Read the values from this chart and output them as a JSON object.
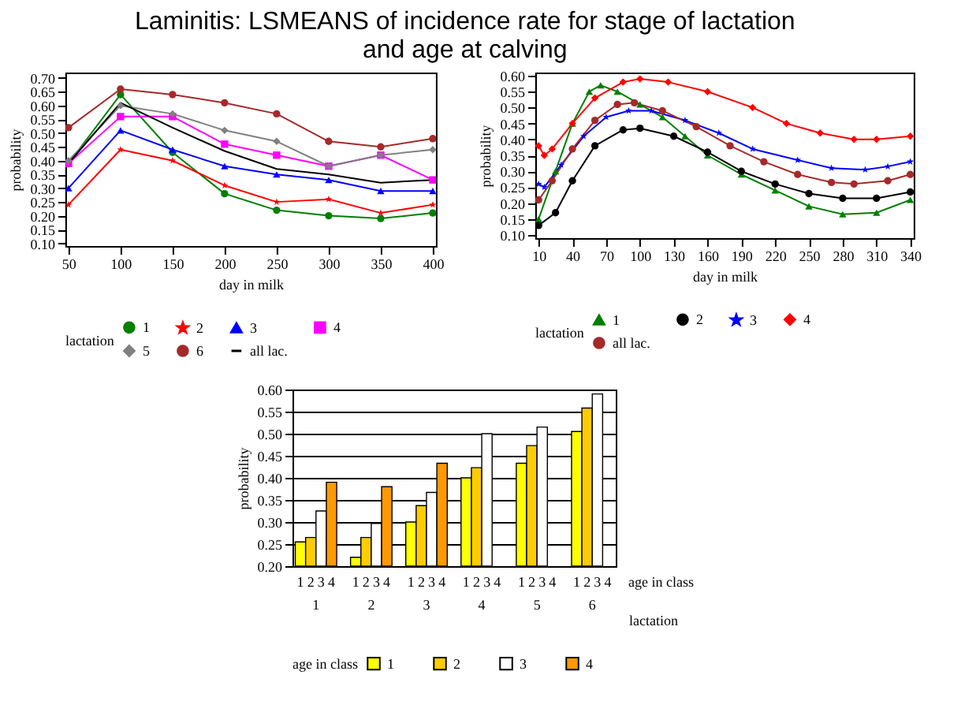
{
  "chart_data": [
    {
      "type": "line",
      "title": "Laminitis: LSMEANS of incidence rate for stage of lactation and age at calving",
      "xlabel": "day in milk",
      "ylabel": "probability",
      "legend_title": "lactation",
      "legend": "bottom",
      "grid": false,
      "x": [
        50,
        100,
        150,
        200,
        250,
        300,
        350,
        400
      ],
      "xlim": [
        47,
        403
      ],
      "xticks": [
        50,
        100,
        150,
        200,
        250,
        300,
        350,
        400
      ],
      "ylim": [
        0.09,
        0.72
      ],
      "yticks": [
        {
          "value": 0.1,
          "label": "0.10"
        },
        {
          "value": 0.15,
          "label": "0.15"
        },
        {
          "value": 0.2,
          "label": "0.20"
        },
        {
          "value": 0.25,
          "label": "0.25"
        },
        {
          "value": 0.3,
          "label": "0.30"
        },
        {
          "value": 0.35,
          "label": "0.35"
        },
        {
          "value": 0.4,
          "label": "0.40"
        },
        {
          "value": 0.45,
          "label": "0.45"
        },
        {
          "value": 0.5,
          "label": "0.50"
        },
        {
          "value": 0.55,
          "label": "0.55"
        },
        {
          "value": 0.6,
          "label": "0.60"
        },
        {
          "value": 0.65,
          "label": "0.65"
        },
        {
          "value": 0.7,
          "label": "0.70"
        }
      ],
      "series": [
        {
          "name": "1",
          "color": "#008000",
          "marker": "circle",
          "values": [
            0.39,
            0.64,
            0.43,
            0.28,
            0.22,
            0.2,
            0.19,
            0.21
          ]
        },
        {
          "name": "2",
          "color": "#ff0000",
          "marker": "star",
          "values": [
            0.24,
            0.44,
            0.4,
            0.31,
            0.25,
            0.26,
            0.21,
            0.24
          ]
        },
        {
          "name": "3",
          "color": "#0000ff",
          "marker": "triangle",
          "values": [
            0.3,
            0.51,
            0.44,
            0.38,
            0.35,
            0.33,
            0.29,
            0.29
          ]
        },
        {
          "name": "4",
          "color": "#ff00ff",
          "marker": "square",
          "values": [
            0.39,
            0.56,
            0.56,
            0.46,
            0.42,
            0.38,
            0.42,
            0.33
          ]
        },
        {
          "name": "5",
          "color": "#808080",
          "marker": "diamond",
          "values": [
            0.4,
            0.6,
            0.57,
            0.51,
            0.47,
            0.38,
            0.42,
            0.44
          ]
        },
        {
          "name": "6",
          "color": "#a52a2a",
          "marker": "circle",
          "values": [
            0.52,
            0.66,
            0.64,
            0.61,
            0.57,
            0.47,
            0.45,
            0.48
          ]
        },
        {
          "name": "all lac.",
          "color": "#000000",
          "marker": "none",
          "values": [
            0.39,
            0.61,
            0.52,
            0.435,
            0.37,
            0.35,
            0.32,
            0.33
          ]
        }
      ]
    },
    {
      "type": "line",
      "xlabel": "day in milk",
      "ylabel": "probability",
      "legend_title": "lactation",
      "legend": "bottom",
      "grid": false,
      "xlim": [
        7,
        343
      ],
      "xticks": [
        10,
        40,
        70,
        100,
        130,
        160,
        190,
        220,
        250,
        280,
        310,
        340
      ],
      "ylim": [
        0.09,
        0.61
      ],
      "yticks": [
        {
          "value": 0.1,
          "label": "0.10"
        },
        {
          "value": 0.15,
          "label": "0.15"
        },
        {
          "value": 0.2,
          "label": "0.20"
        },
        {
          "value": 0.25,
          "label": "0.25"
        },
        {
          "value": 0.3,
          "label": "0.30"
        },
        {
          "value": 0.35,
          "label": "0.35"
        },
        {
          "value": 0.4,
          "label": "0.40"
        },
        {
          "value": 0.45,
          "label": "0.45"
        },
        {
          "value": 0.5,
          "label": "0.50"
        },
        {
          "value": 0.55,
          "label": "0.55"
        },
        {
          "value": 0.6,
          "label": "0.60"
        }
      ],
      "series": [
        {
          "name": "1",
          "color": "#008000",
          "marker": "triangle",
          "x": [
            10,
            25,
            40,
            55,
            65,
            80,
            100,
            120,
            140,
            160,
            190,
            220,
            250,
            280,
            310,
            340
          ],
          "values": [
            0.15,
            0.3,
            0.45,
            0.55,
            0.57,
            0.55,
            0.51,
            0.47,
            0.41,
            0.35,
            0.29,
            0.24,
            0.19,
            0.165,
            0.17,
            0.21
          ]
        },
        {
          "name": "2",
          "color": "#000000",
          "marker": "circle",
          "x": [
            10,
            25,
            40,
            60,
            85,
            100,
            130,
            160,
            190,
            220,
            250,
            280,
            310,
            340
          ],
          "values": [
            0.13,
            0.17,
            0.27,
            0.38,
            0.43,
            0.435,
            0.41,
            0.36,
            0.3,
            0.26,
            0.23,
            0.215,
            0.215,
            0.235
          ]
        },
        {
          "name": "3",
          "color": "#0000ff",
          "marker": "star",
          "x": [
            10,
            15,
            30,
            50,
            70,
            90,
            110,
            140,
            170,
            200,
            240,
            270,
            300,
            320,
            340
          ],
          "values": [
            0.26,
            0.25,
            0.32,
            0.41,
            0.47,
            0.49,
            0.49,
            0.46,
            0.42,
            0.37,
            0.335,
            0.31,
            0.305,
            0.315,
            0.33
          ]
        },
        {
          "name": "4",
          "color": "#ff0000",
          "marker": "diamond",
          "x": [
            10,
            15,
            22,
            40,
            60,
            85,
            100,
            125,
            160,
            200,
            230,
            260,
            290,
            310,
            340
          ],
          "values": [
            0.38,
            0.35,
            0.37,
            0.45,
            0.53,
            0.58,
            0.59,
            0.58,
            0.55,
            0.5,
            0.45,
            0.42,
            0.4,
            0.4,
            0.41
          ]
        },
        {
          "name": "all lac.",
          "color": "#a52a2a",
          "marker": "circle",
          "x": [
            10,
            22,
            40,
            60,
            80,
            95,
            120,
            150,
            180,
            210,
            240,
            270,
            290,
            320,
            340
          ],
          "values": [
            0.21,
            0.27,
            0.37,
            0.46,
            0.51,
            0.515,
            0.49,
            0.44,
            0.38,
            0.33,
            0.29,
            0.265,
            0.26,
            0.27,
            0.29
          ]
        }
      ]
    },
    {
      "type": "bar",
      "xlabel": "lactation",
      "ylabel": "probability",
      "legend_title": "age in class",
      "legend": "bottom",
      "grid": "y",
      "annotations": [
        "age in class"
      ],
      "categories": [
        "1",
        "2",
        "3",
        "4",
        "5",
        "6"
      ],
      "ylim": [
        0.2,
        0.6
      ],
      "yticks": [
        {
          "value": 0.2,
          "label": "0.20"
        },
        {
          "value": 0.25,
          "label": "0.25"
        },
        {
          "value": 0.3,
          "label": "0.30"
        },
        {
          "value": 0.35,
          "label": "0.35"
        },
        {
          "value": 0.4,
          "label": "0.40"
        },
        {
          "value": 0.45,
          "label": "0.45"
        },
        {
          "value": 0.5,
          "label": "0.50"
        },
        {
          "value": 0.55,
          "label": "0.55"
        },
        {
          "value": 0.6,
          "label": "0.60"
        }
      ],
      "series": [
        {
          "name": "1",
          "color": "#ffff00",
          "values": [
            0.255,
            0.22,
            0.3,
            0.4,
            0.433,
            0.505
          ]
        },
        {
          "name": "2",
          "color": "#ffcc00",
          "values": [
            0.265,
            0.265,
            0.337,
            0.423,
            0.473,
            0.558
          ]
        },
        {
          "name": "3",
          "color": "#ffffff",
          "values": [
            0.325,
            0.297,
            0.367,
            0.5,
            0.515,
            0.59
          ]
        },
        {
          "name": "4",
          "color": "#ff9900",
          "values": [
            0.39,
            0.38,
            0.433,
            null,
            null,
            null
          ]
        }
      ]
    }
  ]
}
